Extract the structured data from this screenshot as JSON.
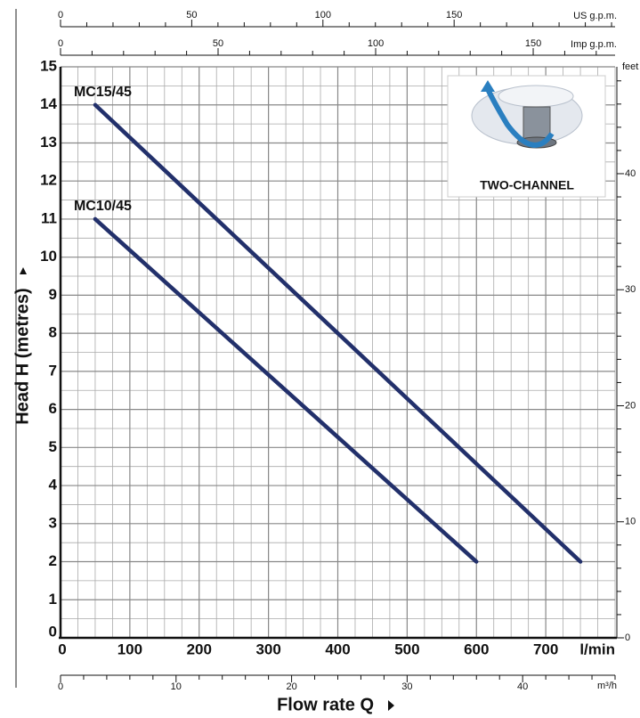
{
  "chart_data": {
    "type": "line",
    "xlabel": "Flow rate Q",
    "ylabel": "Head H (metres)",
    "xunit": "l/min",
    "xlim": [
      0,
      800
    ],
    "xticks": [
      0,
      100,
      200,
      300,
      400,
      500,
      600,
      700
    ],
    "x_minor_ticks": [
      25,
      50,
      75,
      125,
      150,
      175,
      225,
      250,
      275,
      325,
      350,
      375,
      425,
      450,
      475,
      525,
      550,
      575,
      625,
      650,
      675,
      725,
      750,
      775,
      800
    ],
    "ylim": [
      0,
      15
    ],
    "yticks": [
      0,
      1,
      2,
      3,
      4,
      5,
      6,
      7,
      8,
      9,
      10,
      11,
      12,
      13,
      14,
      15
    ],
    "y_minor_ticks": [
      0.5,
      1.5,
      2.5,
      3.5,
      4.5,
      5.5,
      6.5,
      7.5,
      8.5,
      9.5,
      10.5,
      11.5,
      12.5,
      13.5,
      14.5
    ],
    "grid": true,
    "series": [
      {
        "name": "MC15/45",
        "color": "#22306b",
        "x": [
          50,
          750
        ],
        "values": [
          14,
          2
        ]
      },
      {
        "name": "MC10/45",
        "color": "#22306b",
        "x": [
          50,
          600
        ],
        "values": [
          11,
          2
        ]
      }
    ],
    "secondary_axes": [
      {
        "label": "US g.p.m.",
        "position": "top",
        "lim": [
          0,
          211.34
        ],
        "ticks": [
          0,
          50,
          100,
          150
        ],
        "minor_ticks": [
          10,
          20,
          30,
          40,
          60,
          70,
          80,
          90,
          110,
          120,
          130,
          140,
          160,
          170,
          180,
          190,
          200,
          210
        ]
      },
      {
        "label": "Imp g.p.m.",
        "position": "top2",
        "lim": [
          0,
          175.98
        ],
        "ticks": [
          0,
          50,
          100,
          150
        ],
        "minor_ticks": [
          10,
          20,
          30,
          40,
          60,
          70,
          80,
          90,
          110,
          120,
          130,
          140,
          160,
          170
        ]
      },
      {
        "label": "m³/h",
        "position": "bottom",
        "lim": [
          0,
          48
        ],
        "ticks": [
          0,
          10,
          20,
          30,
          40
        ],
        "minor_ticks": [
          2,
          4,
          6,
          8,
          12,
          14,
          16,
          18,
          22,
          24,
          26,
          28,
          32,
          34,
          36,
          38,
          42,
          44,
          46,
          48
        ]
      },
      {
        "label": "feet",
        "position": "right",
        "lim": [
          0,
          49.21
        ],
        "ticks": [
          0,
          10,
          20,
          30,
          40
        ],
        "minor_ticks": [
          2,
          4,
          6,
          8,
          12,
          14,
          16,
          18,
          22,
          24,
          26,
          28,
          32,
          34,
          36,
          38,
          42,
          44,
          46,
          48
        ]
      }
    ],
    "inset_label": "TWO-CHANNEL"
  }
}
